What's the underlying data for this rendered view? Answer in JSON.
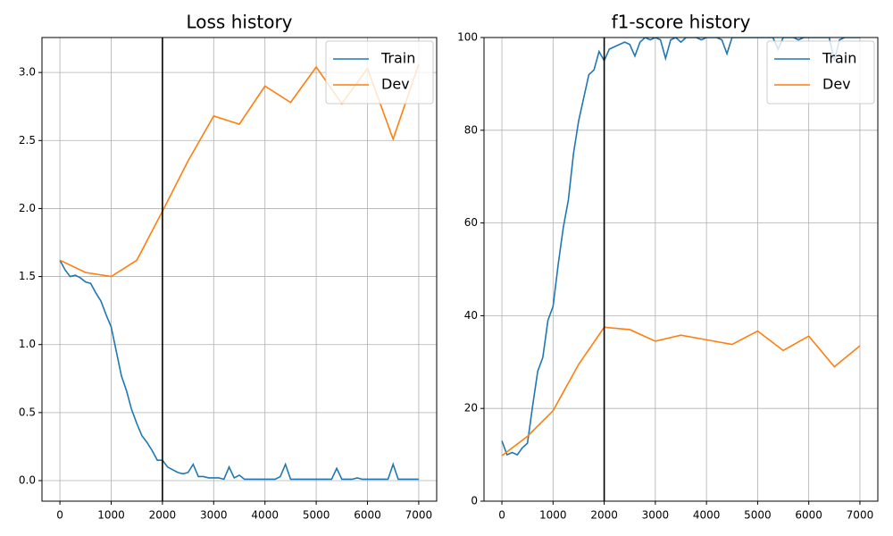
{
  "chart_data": [
    {
      "type": "line",
      "title": "Loss history",
      "legend": "upper right",
      "grid": true,
      "vline": 2000,
      "vline_color": "#000000",
      "xlim": [
        -350,
        7350
      ],
      "xticks": [
        0,
        1000,
        2000,
        3000,
        4000,
        5000,
        6000,
        7000
      ],
      "ylim": [
        -0.151,
        3.257
      ],
      "yticks": [
        {
          "value": 0,
          "label": "0.0"
        },
        {
          "value": 0.5,
          "label": "0.5"
        },
        {
          "value": 1,
          "label": "1.0"
        },
        {
          "value": 1.5,
          "label": "1.5"
        },
        {
          "value": 2,
          "label": "2.0"
        },
        {
          "value": 2.5,
          "label": "2.5"
        },
        {
          "value": 3,
          "label": "3.0"
        }
      ],
      "series": [
        {
          "name": "Train",
          "color": "#1f77b4",
          "x": [
            0,
            100,
            200,
            300,
            400,
            500,
            600,
            700,
            800,
            900,
            1000,
            1100,
            1200,
            1300,
            1400,
            1500,
            1600,
            1700,
            1800,
            1900,
            2000,
            2100,
            2200,
            2300,
            2400,
            2500,
            2600,
            2700,
            2800,
            2900,
            3000,
            3100,
            3200,
            3300,
            3400,
            3500,
            3600,
            3700,
            3800,
            3900,
            4000,
            4100,
            4200,
            4300,
            4400,
            4500,
            4600,
            4700,
            4800,
            4900,
            5000,
            5100,
            5200,
            5300,
            5400,
            5500,
            5600,
            5700,
            5800,
            5900,
            6000,
            6100,
            6200,
            6300,
            6400,
            6500,
            6600,
            6700,
            6800,
            6900,
            7000
          ],
          "values": [
            1.62,
            1.55,
            1.5,
            1.51,
            1.49,
            1.46,
            1.45,
            1.38,
            1.32,
            1.22,
            1.13,
            0.95,
            0.77,
            0.66,
            0.52,
            0.42,
            0.33,
            0.28,
            0.22,
            0.15,
            0.15,
            0.1,
            0.08,
            0.06,
            0.05,
            0.06,
            0.12,
            0.03,
            0.03,
            0.02,
            0.02,
            0.02,
            0.01,
            0.1,
            0.02,
            0.04,
            0.01,
            0.01,
            0.01,
            0.01,
            0.01,
            0.01,
            0.01,
            0.03,
            0.12,
            0.01,
            0.01,
            0.01,
            0.01,
            0.01,
            0.01,
            0.01,
            0.01,
            0.01,
            0.09,
            0.01,
            0.01,
            0.01,
            0.02,
            0.01,
            0.01,
            0.01,
            0.01,
            0.01,
            0.01,
            0.12,
            0.01,
            0.01,
            0.01,
            0.01,
            0.01
          ]
        },
        {
          "name": "Dev",
          "color": "#ff7f0e",
          "x": [
            0,
            500,
            1000,
            1500,
            2000,
            2500,
            3000,
            3500,
            4000,
            4500,
            5000,
            5500,
            6000,
            6500,
            7000
          ],
          "values": [
            1.62,
            1.53,
            1.5,
            1.62,
            1.98,
            2.35,
            2.68,
            2.62,
            2.9,
            2.78,
            3.04,
            2.77,
            3.03,
            2.51,
            3.06
          ]
        }
      ]
    },
    {
      "type": "line",
      "title": "f1-score history",
      "legend": "upper right",
      "grid": true,
      "vline": 2000,
      "vline_color": "#000000",
      "xlim": [
        -350,
        7350
      ],
      "xticks": [
        0,
        1000,
        2000,
        3000,
        4000,
        5000,
        6000,
        7000
      ],
      "ylim": [
        0,
        100
      ],
      "yticks": [
        0,
        20,
        40,
        60,
        80,
        100
      ],
      "series": [
        {
          "name": "Train",
          "color": "#1f77b4",
          "x": [
            0,
            100,
            200,
            300,
            400,
            500,
            600,
            700,
            800,
            900,
            1000,
            1100,
            1200,
            1300,
            1400,
            1500,
            1600,
            1700,
            1800,
            1900,
            2000,
            2100,
            2200,
            2300,
            2400,
            2500,
            2600,
            2700,
            2800,
            2900,
            3000,
            3100,
            3200,
            3300,
            3400,
            3500,
            3600,
            3700,
            3800,
            3900,
            4000,
            4100,
            4200,
            4300,
            4400,
            4500,
            4600,
            4700,
            4800,
            4900,
            5000,
            5100,
            5200,
            5300,
            5400,
            5500,
            5600,
            5700,
            5800,
            5900,
            6000,
            6100,
            6200,
            6300,
            6400,
            6500,
            6600,
            6700,
            6800,
            6900,
            7000
          ],
          "values": [
            13,
            10,
            10.5,
            10,
            11.5,
            12.5,
            20.5,
            28,
            31,
            39,
            42,
            51,
            59,
            65,
            75,
            82,
            87,
            92,
            93,
            97,
            95,
            97.5,
            98,
            98.5,
            99,
            98.5,
            96,
            99,
            100,
            99.5,
            100,
            99.5,
            95.5,
            99.5,
            100,
            99,
            100,
            100,
            100,
            99.5,
            100,
            100,
            100,
            99.5,
            96.5,
            100,
            100,
            100,
            100,
            100,
            100,
            100,
            100,
            100,
            97.5,
            100,
            100,
            100,
            99.5,
            100,
            100,
            100,
            100,
            100,
            100,
            95,
            99.5,
            100,
            100,
            100,
            100
          ]
        },
        {
          "name": "Dev",
          "color": "#ff7f0e",
          "x": [
            0,
            500,
            1000,
            1500,
            2000,
            2500,
            3000,
            3500,
            4000,
            4500,
            5000,
            5500,
            6000,
            6500,
            7000
          ],
          "values": [
            9.8,
            14,
            19.5,
            29.5,
            37.5,
            37,
            34.5,
            35.8,
            34.8,
            33.8,
            36.7,
            32.5,
            35.6,
            29,
            33.5
          ]
        }
      ]
    }
  ]
}
